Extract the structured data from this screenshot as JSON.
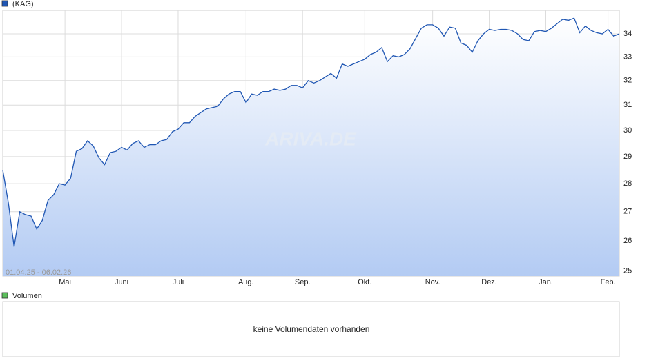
{
  "chart_data": {
    "type": "line",
    "log_scale": true,
    "grid": true,
    "date_range": "01.04.25 - 06.02.26",
    "watermark": "ARIVA.DE",
    "ylim": [
      24.84,
      35.05
    ],
    "yticks": [
      25,
      26,
      27,
      28,
      29,
      30,
      31,
      32,
      33,
      34
    ],
    "categories": [
      null,
      null,
      null,
      null,
      null,
      null,
      null,
      null,
      null,
      null,
      null,
      "Mai",
      null,
      null,
      null,
      null,
      null,
      null,
      null,
      null,
      null,
      "Juni",
      null,
      null,
      null,
      null,
      null,
      null,
      null,
      null,
      null,
      "Juli",
      null,
      null,
      null,
      null,
      null,
      null,
      null,
      null,
      null,
      null,
      null,
      "Aug.",
      null,
      null,
      null,
      null,
      null,
      null,
      null,
      null,
      null,
      "Sep.",
      null,
      null,
      null,
      null,
      null,
      null,
      null,
      null,
      null,
      null,
      "Okt.",
      null,
      null,
      null,
      null,
      null,
      null,
      null,
      null,
      null,
      null,
      null,
      "Nov.",
      null,
      null,
      null,
      null,
      null,
      null,
      null,
      null,
      null,
      "Dez.",
      null,
      null,
      null,
      null,
      null,
      null,
      null,
      null,
      null,
      "Jan.",
      null,
      null,
      null,
      null,
      null,
      null,
      null,
      null,
      null,
      null,
      "Feb.",
      null,
      null
    ],
    "series": [
      {
        "name": "(KAG)",
        "color": "#1f56b3",
        "values": [
          28.5,
          27.3,
          25.8,
          27.0,
          26.9,
          26.85,
          26.4,
          26.7,
          27.4,
          27.6,
          28.0,
          27.95,
          28.2,
          29.2,
          29.3,
          29.6,
          29.4,
          28.95,
          28.7,
          29.15,
          29.2,
          29.35,
          29.25,
          29.5,
          29.6,
          29.35,
          29.45,
          29.45,
          29.6,
          29.65,
          29.95,
          30.05,
          30.3,
          30.3,
          30.55,
          30.7,
          30.85,
          30.9,
          30.95,
          31.25,
          31.45,
          31.55,
          31.55,
          31.1,
          31.45,
          31.4,
          31.55,
          31.55,
          31.65,
          31.6,
          31.65,
          31.8,
          31.8,
          31.7,
          32.0,
          31.9,
          32.0,
          32.15,
          32.3,
          32.1,
          32.7,
          32.6,
          32.7,
          32.8,
          32.9,
          33.1,
          33.2,
          33.4,
          32.8,
          33.05,
          33.0,
          33.1,
          33.35,
          33.8,
          34.25,
          34.4,
          34.4,
          34.25,
          33.9,
          34.3,
          34.25,
          33.6,
          33.5,
          33.2,
          33.7,
          34.0,
          34.2,
          34.15,
          34.2,
          34.2,
          34.15,
          34.0,
          33.75,
          33.7,
          34.1,
          34.15,
          34.1,
          34.25,
          34.45,
          34.65,
          34.6,
          34.7,
          34.05,
          34.35,
          34.15,
          34.05,
          34.0,
          34.2,
          33.9,
          34.0
        ]
      }
    ]
  },
  "volume_panel": {
    "title": "Volumen",
    "message": "keine Volumendaten vorhanden",
    "color": "#5cbf5c"
  }
}
